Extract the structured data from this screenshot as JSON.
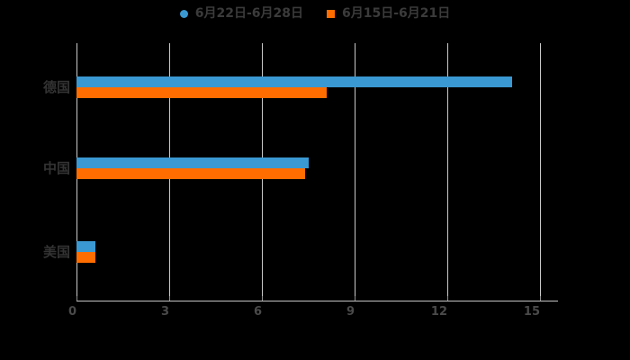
{
  "chart_data": {
    "type": "bar",
    "orientation": "horizontal",
    "title": "",
    "categories": [
      "德国",
      "中国",
      "美国"
    ],
    "series": [
      {
        "name": "6月22日-6月28日",
        "color": "#3A99D2",
        "marker": "circle",
        "values": [
          14.1,
          7.5,
          0.6
        ]
      },
      {
        "name": "6月15日-6月21日",
        "color": "#FF6D00",
        "marker": "square",
        "values": [
          8.1,
          7.4,
          0.6
        ]
      }
    ],
    "x_ticks": [
      "0",
      "3",
      "6",
      "9",
      "12",
      "15"
    ],
    "xlim": [
      0,
      15
    ],
    "grid": true,
    "legend_position": "top",
    "background": "#000000"
  }
}
